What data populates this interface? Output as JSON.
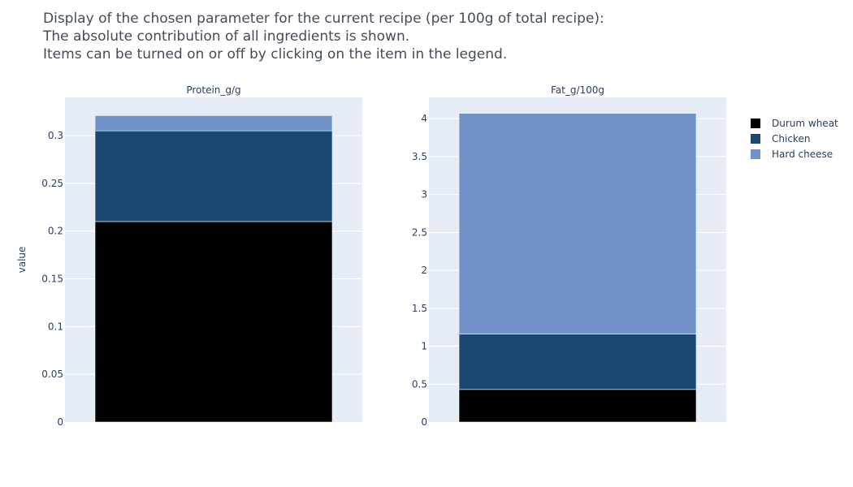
{
  "header": {
    "lines": [
      "Display of the chosen parameter for the current recipe (per 100g of total recipe):",
      "The absolute contribution of all ingredients is shown.",
      "Items can be turned on or off by clicking on the item in the legend."
    ]
  },
  "colors": {
    "Durum wheat": "#000000",
    "Chicken": "#1a4872",
    "Hard cheese": "#7092c9",
    "plot_bg": "#e5ecf6",
    "grid": "#ffffff",
    "text": "#2a3f5f"
  },
  "chart_data": [
    {
      "type": "bar",
      "stacked": true,
      "title": "Protein_g/g",
      "ylabel": "value",
      "ylim": [
        0,
        0.34
      ],
      "yticks": [
        0,
        0.05,
        0.1,
        0.15,
        0.2,
        0.25,
        0.3
      ],
      "ytick_labels": [
        "0",
        "0.05",
        "0.1",
        "0.15",
        "0.2",
        "0.25",
        "0.3"
      ],
      "grid": true,
      "series": [
        {
          "name": "Durum wheat",
          "values": [
            0.21
          ]
        },
        {
          "name": "Chicken",
          "values": [
            0.095
          ]
        },
        {
          "name": "Hard cheese",
          "values": [
            0.016
          ]
        }
      ]
    },
    {
      "type": "bar",
      "stacked": true,
      "title": "Fat_g/100g",
      "ylabel": "",
      "ylim": [
        0,
        4.28
      ],
      "yticks": [
        0,
        0.5,
        1,
        1.5,
        2,
        2.5,
        3,
        3.5,
        4
      ],
      "ytick_labels": [
        "0",
        "0.5",
        "1",
        "1.5",
        "2",
        "2.5",
        "3",
        "3.5",
        "4"
      ],
      "grid": true,
      "series": [
        {
          "name": "Durum wheat",
          "values": [
            0.43
          ]
        },
        {
          "name": "Chicken",
          "values": [
            0.73
          ]
        },
        {
          "name": "Hard cheese",
          "values": [
            2.91
          ]
        }
      ]
    }
  ],
  "legend": {
    "placement": "right",
    "items": [
      "Durum wheat",
      "Chicken",
      "Hard cheese"
    ]
  }
}
